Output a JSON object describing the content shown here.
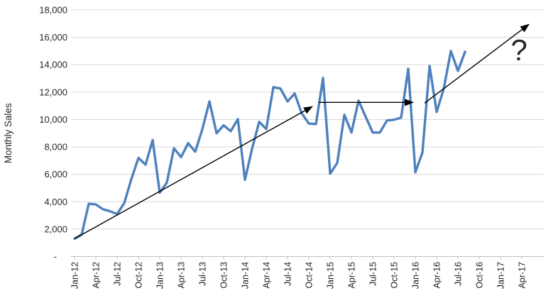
{
  "chart_data": {
    "type": "line",
    "title": "",
    "xlabel": "",
    "ylabel": "Monthly Sales",
    "legend": "none",
    "grid": "horizontal",
    "ylim": [
      0,
      18000
    ],
    "y_tick_step": 2000,
    "y_ticks": [
      {
        "value": 0,
        "label": "-"
      },
      {
        "value": 2000,
        "label": "2,000"
      },
      {
        "value": 4000,
        "label": "4,000"
      },
      {
        "value": 6000,
        "label": "6,000"
      },
      {
        "value": 8000,
        "label": "8,000"
      },
      {
        "value": 10000,
        "label": "10,000"
      },
      {
        "value": 12000,
        "label": "12,000"
      },
      {
        "value": 14000,
        "label": "14,000"
      },
      {
        "value": 16000,
        "label": "16,000"
      },
      {
        "value": 18000,
        "label": "18,000"
      }
    ],
    "x_start": "Jan-12",
    "x_interval": "monthly",
    "x_tick_every_months": 3,
    "x_tick_labels": [
      "Jan-12",
      "Apr-12",
      "Jul-12",
      "Oct-12",
      "Jan-13",
      "Apr-13",
      "Jul-13",
      "Oct-13",
      "Jan-14",
      "Apr-14",
      "Jul-14",
      "Oct-14",
      "Jan-15",
      "Apr-15",
      "Jul-15",
      "Oct-15",
      "Jan-16",
      "Apr-16",
      "Jul-16",
      "Oct-16",
      "Jan-17",
      "Apr-17"
    ],
    "series": [
      {
        "name": "Monthly Sales",
        "color": "#4F81BD",
        "values": [
          1300,
          1600,
          3850,
          3800,
          3450,
          3300,
          3100,
          3900,
          5650,
          7200,
          6700,
          8500,
          4650,
          5400,
          7900,
          7250,
          8270,
          7650,
          9300,
          11320,
          9000,
          9570,
          9150,
          10030,
          5600,
          7860,
          9830,
          9310,
          12360,
          12260,
          11320,
          11900,
          10450,
          9700,
          9670,
          13030,
          6050,
          6830,
          10350,
          9050,
          11380,
          10200,
          9050,
          9050,
          9930,
          9980,
          10140,
          13710,
          6150,
          7600,
          13910,
          10550,
          12250,
          15000,
          13550,
          14950
        ]
      }
    ],
    "annotations": {
      "arrows": [
        {
          "name": "uptrend-arrow-2012-2014",
          "from_month": 0,
          "from_value": 1300,
          "to_month": 33.5,
          "to_value": 10950
        },
        {
          "name": "plateau-arrow-2015",
          "from_month": 34.4,
          "from_value": 11250,
          "to_month": 47.7,
          "to_value": 11250
        },
        {
          "name": "projected-uptrend-arrow",
          "from_month": 49.3,
          "from_value": 11200,
          "to_month": 64.0,
          "to_value": 16950
        }
      ],
      "question_mark": {
        "text": "?",
        "month": 62.6,
        "value": 15100
      }
    }
  },
  "colors": {
    "line": "#4F81BD",
    "annotation": "#000000",
    "gridline": "#D9D9D9",
    "axis": "#BFBFBF",
    "label_text": "#262626"
  }
}
